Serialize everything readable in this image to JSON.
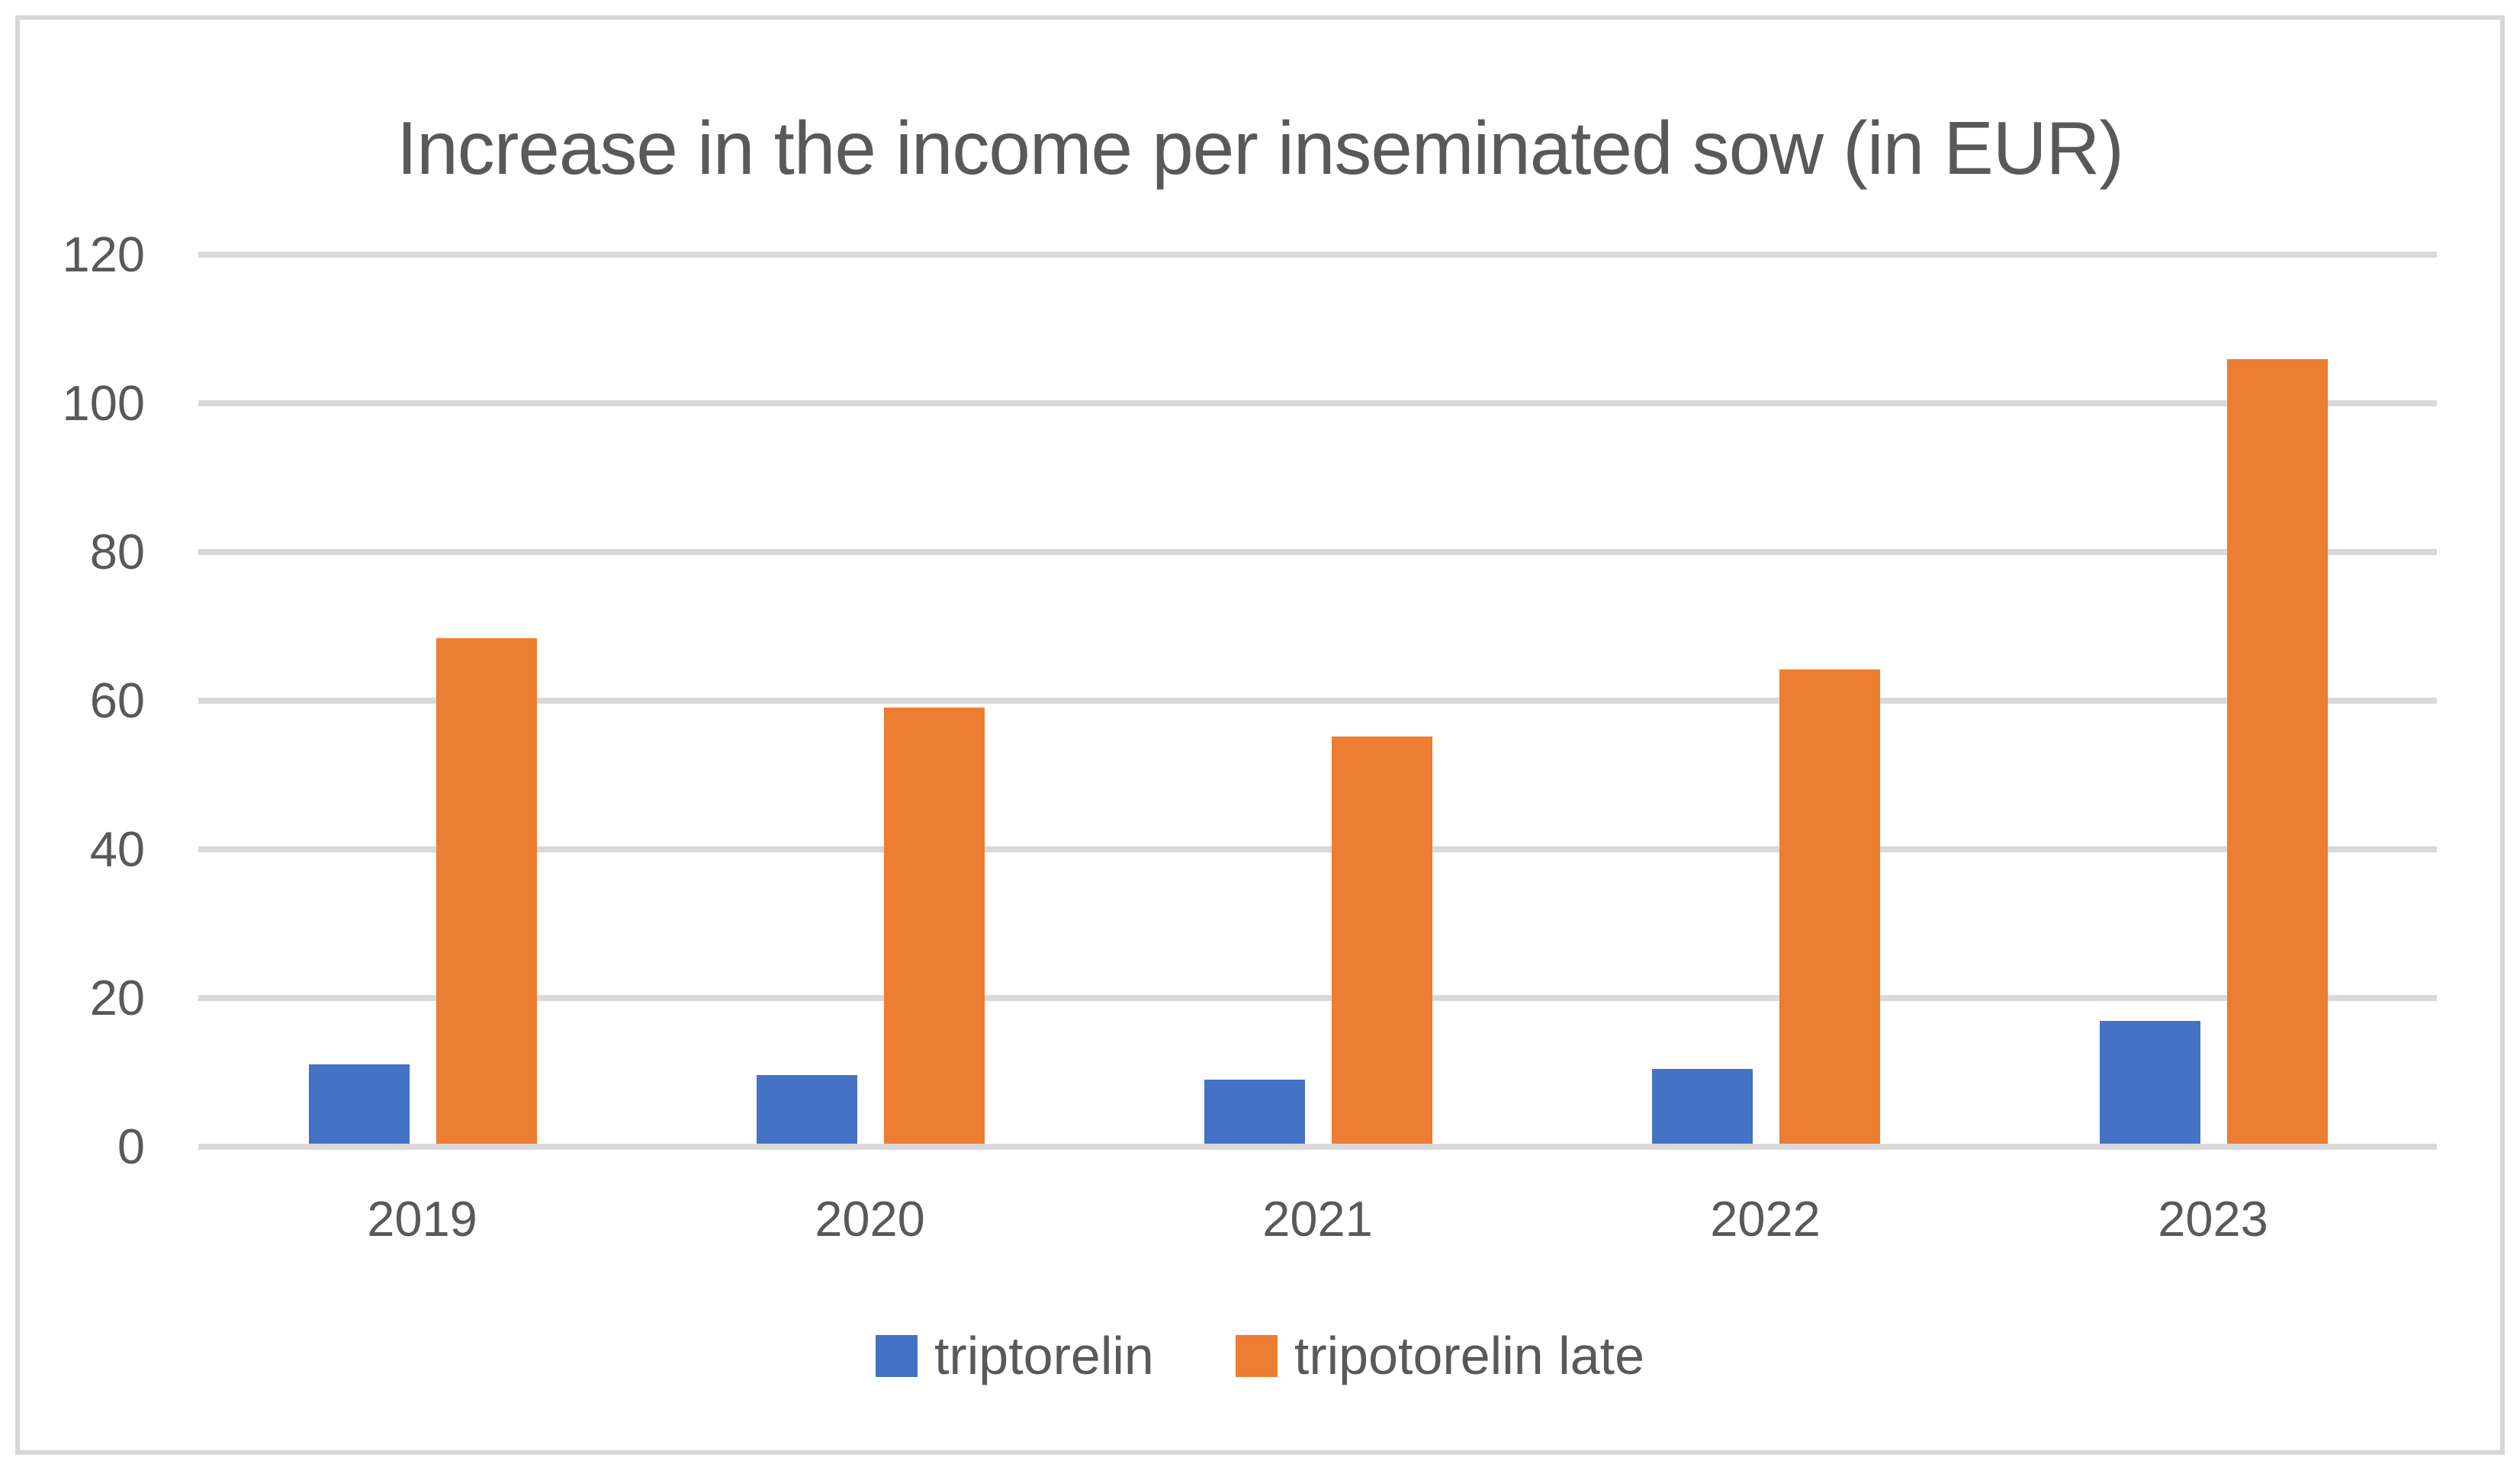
{
  "theme": {
    "background": "#FFFFFF",
    "frame_border": "#D6D6D6",
    "gridline": "#D9D9D9",
    "text": "#595959"
  },
  "chart_data": {
    "type": "bar",
    "title": "Increase in the income per inseminated sow (in EUR)",
    "categories": [
      "2019",
      "2020",
      "2021",
      "2022",
      "2023"
    ],
    "series": [
      {
        "name": "triptorelin",
        "color": "#4472C4",
        "values": [
          10.7,
          9.2,
          8.6,
          10.1,
          16.5
        ]
      },
      {
        "name": "tripotorelin late",
        "color": "#ED7D31",
        "values": [
          68,
          58.7,
          54.8,
          63.8,
          105.5
        ]
      }
    ],
    "xlabel": "",
    "ylabel": "",
    "ylim": [
      0,
      120
    ],
    "yticks": [
      0,
      20,
      40,
      60,
      80,
      100,
      120
    ],
    "grid": true,
    "legend_position": "bottom"
  }
}
